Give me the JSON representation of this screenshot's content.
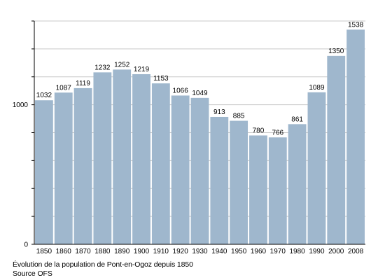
{
  "chart_data": {
    "type": "bar",
    "categories": [
      "1850",
      "1860",
      "1870",
      "1880",
      "1890",
      "1900",
      "1910",
      "1920",
      "1930",
      "1940",
      "1950",
      "1960",
      "1970",
      "1980",
      "1990",
      "2000",
      "2008"
    ],
    "values": [
      1032,
      1087,
      1119,
      1232,
      1252,
      1219,
      1153,
      1066,
      1049,
      913,
      885,
      780,
      766,
      861,
      1089,
      1350,
      1538
    ],
    "data_labels": [
      "1032",
      "1087",
      "1119",
      "1232",
      "1252",
      "1219",
      "1153",
      "1066",
      "1049",
      "913",
      "885",
      "780",
      "766",
      "861",
      "1089",
      "1350",
      "1538"
    ],
    "y_tick_labels": [
      {
        "value": 0,
        "label": "0"
      },
      {
        "value": 1000,
        "label": "1000"
      }
    ],
    "ylim": [
      0,
      1600
    ],
    "grid": true,
    "bar_color": "#9fb7cd",
    "gridline_color": "#c8c8c8",
    "caption": "Évolution de la population de Pont-en-Ogoz depuis 1850",
    "source": "Source OFS"
  }
}
